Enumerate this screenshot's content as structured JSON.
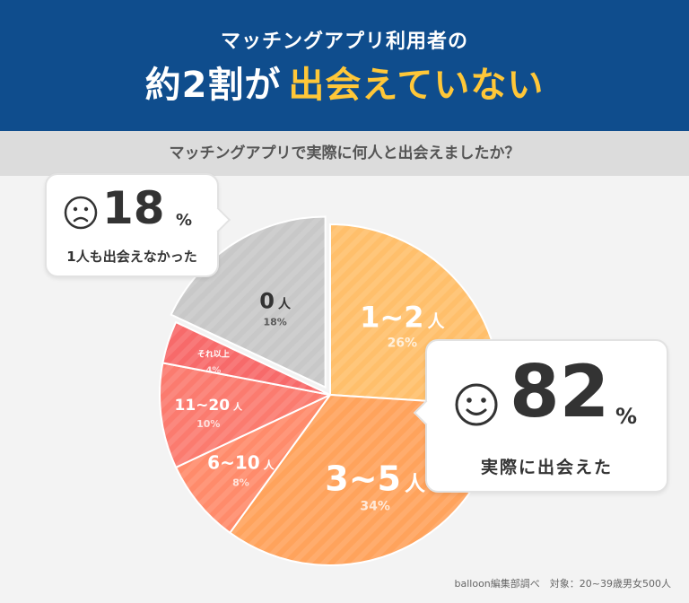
{
  "header": {
    "subtitle": "マッチングアプリ利用者の",
    "title_main": "約2割が",
    "title_highlight": "出会えていない"
  },
  "question": "マッチングアプリで実際に何人と出会えましたか？",
  "callout_left": {
    "value": "18",
    "unit": "%",
    "caption": "1人も出会えなかった",
    "icon": "sad-face-icon"
  },
  "callout_right": {
    "value": "82",
    "unit": "%",
    "caption": "実際に出会えた",
    "icon": "smile-face-icon"
  },
  "source": "balloon編集部調べ　対象：20~39歳男女500人",
  "colors": {
    "header_bg": "#0f4d8d",
    "highlight": "#ffc738",
    "slice_0": "#c8c8c8",
    "slice_1_2": "#ffbf6b",
    "slice_3_5": "#ffa35c",
    "slice_6_10": "#ff8b6b",
    "slice_11_20": "#fb7b6f",
    "slice_other": "#f76a6a"
  },
  "chart_data": {
    "type": "pie",
    "slices": [
      {
        "label": "1~2",
        "unit": "人",
        "value": 26,
        "pct_label": "26%"
      },
      {
        "label": "3~5",
        "unit": "人",
        "value": 34,
        "pct_label": "34%"
      },
      {
        "label": "6~10",
        "unit": "人",
        "value": 8,
        "pct_label": "8%"
      },
      {
        "label": "11~20",
        "unit": "人",
        "value": 10,
        "pct_label": "10%"
      },
      {
        "label": "それ以上",
        "unit": "",
        "value": 4,
        "pct_label": "4%"
      },
      {
        "label": "0",
        "unit": "人",
        "value": 18,
        "pct_label": "18%"
      }
    ]
  }
}
